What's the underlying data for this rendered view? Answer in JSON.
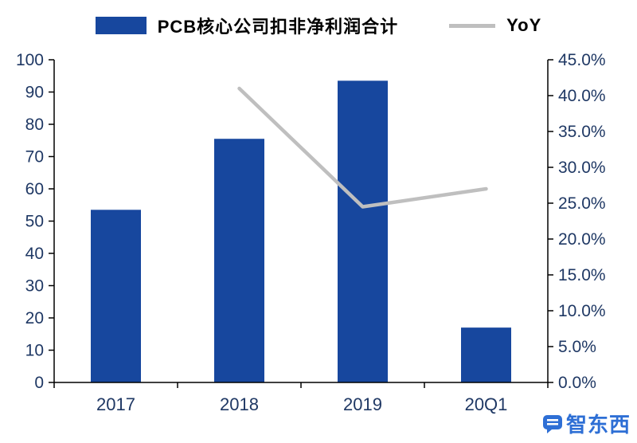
{
  "watermark": {
    "text": "智东西"
  },
  "chart_data": {
    "type": "bar",
    "subtype": "bar-line-combo",
    "title": "",
    "categories": [
      "2017",
      "2018",
      "2019",
      "20Q1"
    ],
    "series": [
      {
        "name": "PCB核心公司扣非净利润合计",
        "type": "bar",
        "axis": "left",
        "color": "#17479E",
        "values": [
          53.5,
          75.5,
          93.5,
          17.0
        ]
      },
      {
        "name": "YoY",
        "type": "line",
        "axis": "right",
        "color": "#BFBFBF",
        "values": [
          null,
          41.0,
          24.5,
          27.0
        ]
      }
    ],
    "left_axis": {
      "min": 0,
      "max": 100,
      "step": 10,
      "labels": [
        "0",
        "10",
        "20",
        "30",
        "40",
        "50",
        "60",
        "70",
        "80",
        "90",
        "100"
      ]
    },
    "right_axis": {
      "min": 0,
      "max": 45,
      "step": 5,
      "format": "percent",
      "labels": [
        "0.0%",
        "5.0%",
        "10.0%",
        "15.0%",
        "20.0%",
        "25.0%",
        "30.0%",
        "35.0%",
        "40.0%",
        "45.0%"
      ]
    },
    "grid": false,
    "legend_position": "top",
    "axis_text_color": "#1F3864",
    "axis_line_color": "#000000"
  }
}
